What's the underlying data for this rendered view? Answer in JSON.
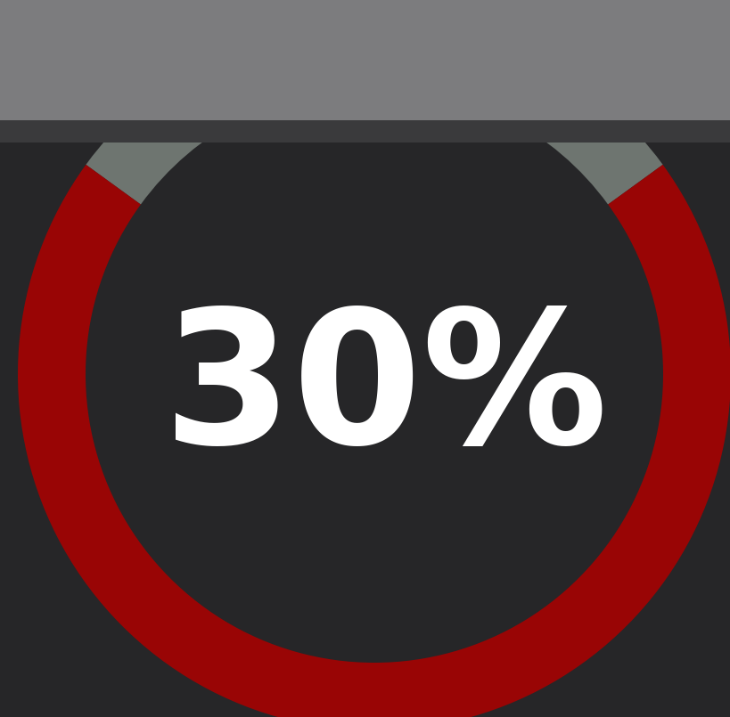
{
  "chart_data": {
    "type": "donut",
    "center_label": "30%",
    "values": [
      30,
      70
    ],
    "colors": [
      "#6e7570",
      "#990505"
    ]
  }
}
